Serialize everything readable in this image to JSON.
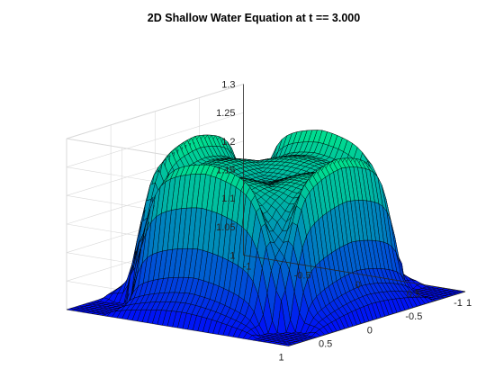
{
  "chart_data": {
    "type": "surface",
    "title": "2D Shallow Water Equation at t == 3.000",
    "xlabel": "",
    "ylabel": "",
    "zlabel": "",
    "xlim": [
      -1,
      1
    ],
    "ylim": [
      -1,
      1
    ],
    "zlim": [
      1,
      1.3
    ],
    "x_ticks": [
      "-1",
      "-0.5",
      "0",
      "0.5",
      "1"
    ],
    "y_ticks": [
      "-1",
      "-0.5",
      "0",
      "0.5",
      "1"
    ],
    "z_ticks": [
      "1",
      "1.05",
      "1.1",
      "1.15",
      "1.2",
      "1.25",
      "1.3"
    ],
    "grid": true,
    "colormap": "winter",
    "colors": {
      "low": "#0000ff",
      "high": "#00ff80",
      "box": "#d9d9d9",
      "axis": "#262626"
    },
    "surface_profile": {
      "corner_height": 1.0,
      "edge_mid_height": 1.11,
      "center_plateau_height": 1.25,
      "ridge_peak_height": 1.3,
      "trough_min_height": 1.0
    }
  }
}
